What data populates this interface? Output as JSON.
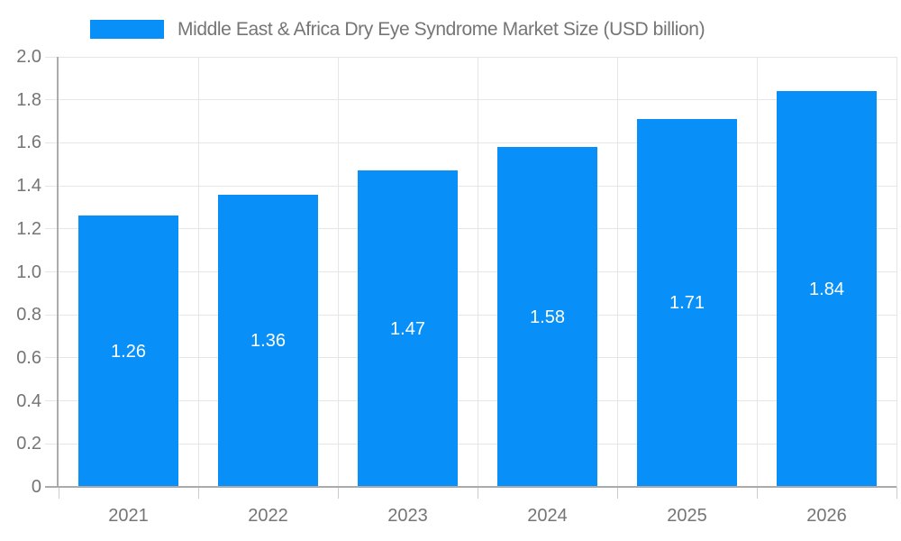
{
  "chart_data": {
    "type": "bar",
    "title": "Middle East & Africa Dry Eye Syndrome Market Size (USD billion)",
    "categories": [
      "2021",
      "2022",
      "2023",
      "2024",
      "2025",
      "2026"
    ],
    "values": [
      1.26,
      1.36,
      1.47,
      1.58,
      1.71,
      1.84
    ],
    "value_labels": [
      "1.26",
      "1.36",
      "1.47",
      "1.58",
      "1.71",
      "1.84"
    ],
    "xlabel": "",
    "ylabel": "",
    "ylim": [
      0,
      2.0
    ],
    "yticks": [
      "0",
      "0.2",
      "0.4",
      "0.6",
      "0.8",
      "1.0",
      "1.2",
      "1.4",
      "1.6",
      "1.8",
      "2.0"
    ],
    "grid": true,
    "legend_position": "top",
    "value_labels_position": "center-inside",
    "colors": {
      "bar": "#0890f8",
      "grid": "#e6e6e6",
      "axis": "#ababab",
      "tick": "#cccccc",
      "label": "#757575",
      "value_label": "#ffffff",
      "background": "#ffffff"
    }
  }
}
